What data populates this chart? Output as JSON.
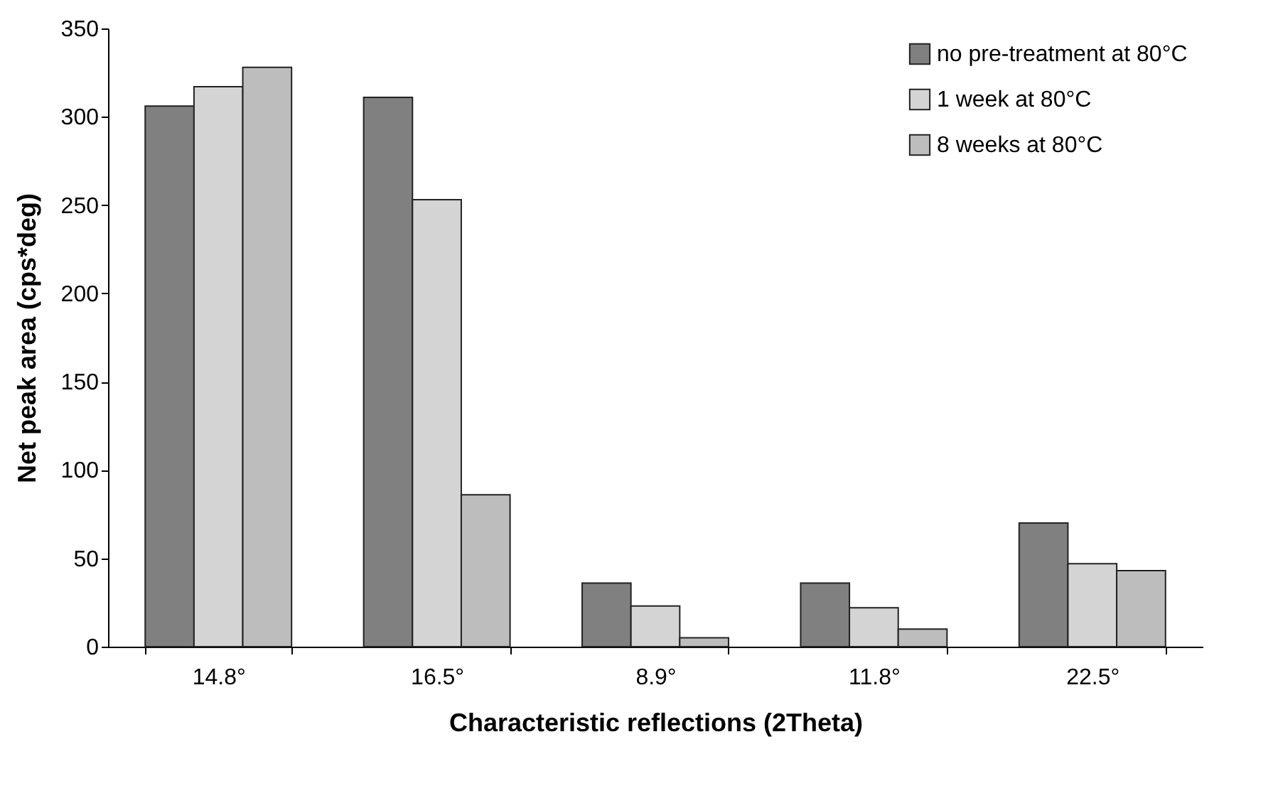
{
  "chart_data": {
    "type": "bar",
    "xlabel": "Characteristic reflections (2Theta)",
    "ylabel": "Net peak area (cps*deg)",
    "categories": [
      "14.8°",
      "16.5°",
      "8.9°",
      "11.8°",
      "22.5°"
    ],
    "series": [
      {
        "name": "no pre-treatment at 80°C",
        "color": "#808080",
        "values": [
          306,
          311,
          36,
          36,
          70
        ]
      },
      {
        "name": "1 week at 80°C",
        "color": "#d4d4d4",
        "values": [
          317,
          253,
          23,
          22,
          47
        ]
      },
      {
        "name": "8 weeks at 80°C",
        "color": "#bdbdbd",
        "values": [
          328,
          86,
          5,
          10,
          43
        ]
      }
    ],
    "ylim": [
      0,
      350
    ],
    "yticks": [
      0,
      50,
      100,
      150,
      200,
      250,
      300,
      350
    ],
    "grid": false,
    "legend": "top right"
  }
}
